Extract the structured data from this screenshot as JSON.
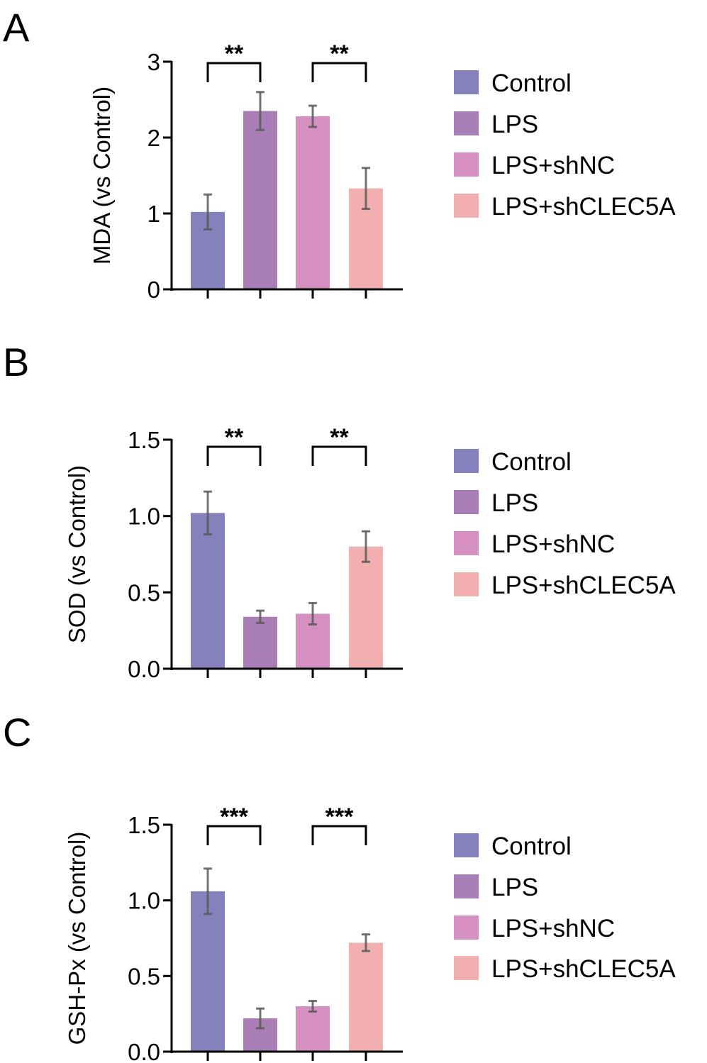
{
  "chart_data": [
    {
      "type": "bar",
      "panel": "A",
      "ylabel": "MDA (vs Control)",
      "ylim": [
        0,
        3
      ],
      "yticks": [
        "0",
        "1",
        "2",
        "3"
      ],
      "tick_values": [
        0,
        1,
        2,
        3
      ],
      "categories": [
        "Control",
        "LPS",
        "LPS+shNC",
        "LPS+shCLEC5A"
      ],
      "values": [
        1.02,
        2.35,
        2.28,
        1.33
      ],
      "errors": [
        0.23,
        0.25,
        0.14,
        0.27
      ],
      "significance": [
        {
          "from": 0,
          "to": 1,
          "label": "**"
        },
        {
          "from": 2,
          "to": 3,
          "label": "**"
        }
      ],
      "legend": [
        "Control",
        "LPS",
        "LPS+shNC",
        "LPS+shCLEC5A"
      ]
    },
    {
      "type": "bar",
      "panel": "B",
      "ylabel": "SOD (vs Control)",
      "ylim": [
        0,
        1.5
      ],
      "yticks": [
        "0.0",
        "0.5",
        "1.0",
        "1.5"
      ],
      "tick_values": [
        0,
        0.5,
        1.0,
        1.5
      ],
      "categories": [
        "Control",
        "LPS",
        "LPS+shNC",
        "LPS+shCLEC5A"
      ],
      "values": [
        1.02,
        0.34,
        0.36,
        0.8
      ],
      "errors": [
        0.14,
        0.04,
        0.07,
        0.1
      ],
      "significance": [
        {
          "from": 0,
          "to": 1,
          "label": "**"
        },
        {
          "from": 2,
          "to": 3,
          "label": "**"
        }
      ],
      "legend": [
        "Control",
        "LPS",
        "LPS+shNC",
        "LPS+shCLEC5A"
      ]
    },
    {
      "type": "bar",
      "panel": "C",
      "ylabel": "GSH-Px (vs Control)",
      "ylim": [
        0,
        1.5
      ],
      "yticks": [
        "0.0",
        "0.5",
        "1.0",
        "1.5"
      ],
      "tick_values": [
        0,
        0.5,
        1.0,
        1.5
      ],
      "categories": [
        "Control",
        "LPS",
        "LPS+shNC",
        "LPS+shCLEC5A"
      ],
      "values": [
        1.06,
        0.22,
        0.3,
        0.72
      ],
      "errors": [
        0.15,
        0.065,
        0.035,
        0.055
      ],
      "significance": [
        {
          "from": 0,
          "to": 1,
          "label": "***"
        },
        {
          "from": 2,
          "to": 3,
          "label": "***"
        }
      ],
      "legend": [
        "Control",
        "LPS",
        "LPS+shNC",
        "LPS+shCLEC5A"
      ]
    }
  ],
  "colors": [
    "#8481BD",
    "#A97DB6",
    "#D58FC0",
    "#F2AFAF"
  ],
  "errorbar_color": "#5a5a5a",
  "grid": false,
  "legend_position": "right"
}
